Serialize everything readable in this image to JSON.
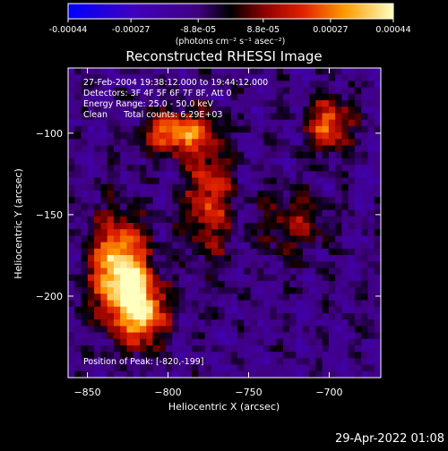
{
  "chart_data": {
    "type": "heatmap",
    "title": "Reconstructed RHESSI Image",
    "xlabel": "Heliocentric X (arcsec)",
    "ylabel": "Heliocentric Y (arcsec)",
    "xlim": [
      -862,
      -668
    ],
    "ylim": [
      -250,
      -60
    ],
    "xticks": [
      -850,
      -800,
      -750,
      -700
    ],
    "xtick_labels": [
      "−850",
      "−800",
      "−750",
      "−700"
    ],
    "yticks": [
      -100,
      -150,
      -200
    ],
    "ytick_labels": [
      "−100",
      "−150",
      "−200"
    ],
    "colorbar": {
      "range": [
        -0.00044,
        0.00044
      ],
      "ticks": [
        -0.00044,
        -0.00027,
        -8.8e-05,
        8.8e-05,
        0.00027,
        0.00044
      ],
      "tick_labels": [
        "-0.00044",
        "-0.00027",
        "-8.8e-05",
        "8.8e-05",
        "0.00027",
        "0.00044"
      ],
      "unit_label": "(photons cm⁻² s⁻¹ asec⁻²)"
    },
    "annotations": [
      "27-Feb-2004 19:38:12.000 to 19:44:12.000",
      "Detectors: 3F 4F 5F 6F 7F 8F, Att 0",
      "Energy Range: 25.0 - 50.0 keV",
      "Clean      Total counts: 6.29E+03"
    ],
    "peak_label": "Position of Peak: [-820,-199]",
    "peak": {
      "x": -820,
      "y": -199
    },
    "sources": [
      {
        "x": -830,
        "y": -185,
        "sx": 12,
        "sy": 22,
        "amp": 1.0
      },
      {
        "x": -815,
        "y": -210,
        "sx": 10,
        "sy": 14,
        "amp": 0.8
      },
      {
        "x": -795,
        "y": -100,
        "sx": 14,
        "sy": 9,
        "amp": 0.75
      },
      {
        "x": -775,
        "y": -140,
        "sx": 10,
        "sy": 25,
        "amp": 0.55
      },
      {
        "x": -700,
        "y": -95,
        "sx": 9,
        "sy": 11,
        "amp": 0.7
      },
      {
        "x": -722,
        "y": -155,
        "sx": 14,
        "sy": 14,
        "amp": 0.35
      }
    ],
    "timestamp": "29-Apr-2022 01:08"
  }
}
